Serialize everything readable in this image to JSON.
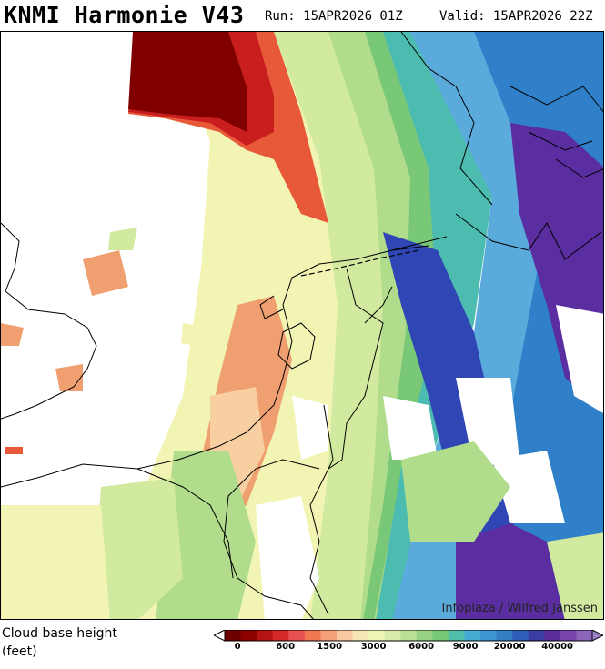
{
  "header": {
    "title": "KNMI Harmonie V43",
    "run": "Run: 15APR2026 01Z",
    "valid": "Valid: 15APR2026 22Z"
  },
  "map": {
    "credit": "Infoplaza / Wilfred Janssen",
    "regions": [
      "North Sea",
      "England",
      "Netherlands",
      "Belgium",
      "Germany"
    ],
    "palette": {
      "dark_red": "#800000",
      "red": "#c81e1e",
      "orange_red": "#e8593a",
      "orange": "#f0a070",
      "light_orange": "#f7cfa0",
      "pale_yellow": "#f2f4b4",
      "yellow_green": "#d2eaa0",
      "light_green": "#b0dc8c",
      "green": "#78c878",
      "teal": "#4cbcb0",
      "light_blue": "#5aaadc",
      "blue": "#2f80c8",
      "dark_blue": "#3046b4",
      "purple": "#5a2ea0"
    }
  },
  "legend": {
    "label_line1": "Cloud base height",
    "label_line2": "(feet)",
    "colors": [
      "#6e0000",
      "#8c0000",
      "#b41414",
      "#d22828",
      "#e65050",
      "#f07850",
      "#f5a078",
      "#f8c8a0",
      "#f5e6b4",
      "#f0f5b4",
      "#d7ecaa",
      "#b9e196",
      "#96d282",
      "#78c878",
      "#50beaa",
      "#46aad2",
      "#3c96d2",
      "#327dc3",
      "#2d5fb9",
      "#3c3ca5",
      "#5a2d9b",
      "#7846aa",
      "#8c64b9"
    ],
    "ticks": [
      {
        "label": "0",
        "frac": 0.035
      },
      {
        "label": "600",
        "frac": 0.165
      },
      {
        "label": "1500",
        "frac": 0.285
      },
      {
        "label": "3000",
        "frac": 0.405
      },
      {
        "label": "6000",
        "frac": 0.535
      },
      {
        "label": "9000",
        "frac": 0.655
      },
      {
        "label": "20000",
        "frac": 0.775
      },
      {
        "label": "40000",
        "frac": 0.905
      }
    ]
  }
}
